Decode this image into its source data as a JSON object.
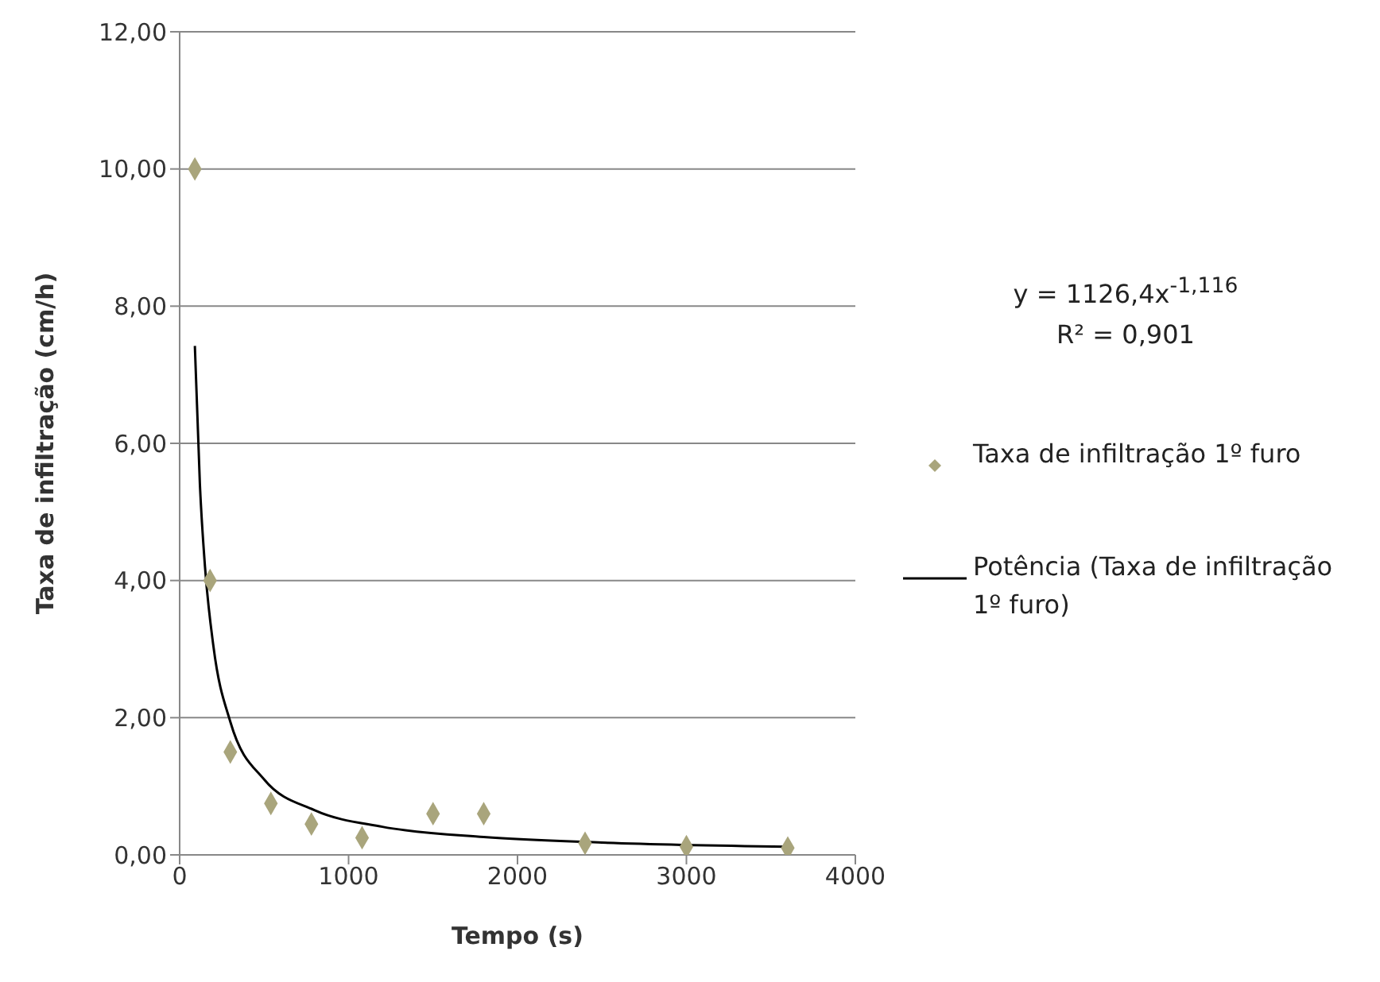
{
  "chart_data": {
    "type": "scatter",
    "xlabel": "Tempo (s)",
    "ylabel": "Taxa de infiltração (cm/h)",
    "xlim": [
      0,
      4000
    ],
    "xticks": [
      0,
      1000,
      2000,
      3000,
      4000
    ],
    "ylim": [
      0,
      12
    ],
    "yticks": [
      {
        "value": 0,
        "label": "0,00"
      },
      {
        "value": 2,
        "label": "2,00"
      },
      {
        "value": 4,
        "label": "4,00"
      },
      {
        "value": 6,
        "label": "6,00"
      },
      {
        "value": 8,
        "label": "8,00"
      },
      {
        "value": 10,
        "label": "10,00"
      },
      {
        "value": 12,
        "label": "12,00"
      }
    ],
    "grid": "y",
    "legend": "right",
    "annotations": [
      "y = 1126,4x$^{-1,116}$",
      "R² = 0,901"
    ],
    "series": [
      {
        "name": "Taxa de infiltração 1º furo",
        "type": "scatter",
        "marker": "diamond",
        "color": "#a9a57c",
        "x": [
          90,
          180,
          300,
          540,
          780,
          1080,
          1500,
          1800,
          2400,
          3000,
          3600
        ],
        "values": [
          10.0,
          4.0,
          1.5,
          0.75,
          0.45,
          0.25,
          0.6,
          0.6,
          0.17,
          0.12,
          0.1
        ]
      },
      {
        "name": "Potência (Taxa de infiltração 1º furo)",
        "type": "line",
        "marker": "none",
        "line_style": "solid",
        "color": "#000000",
        "x": [
          90,
          120,
          150,
          200,
          300,
          500,
          800,
          1200,
          1800,
          2500,
          3600
        ],
        "values": [
          7.42,
          5.39,
          4.2,
          3.04,
          1.94,
          1.1,
          0.65,
          0.41,
          0.26,
          0.18,
          0.12
        ]
      }
    ]
  }
}
